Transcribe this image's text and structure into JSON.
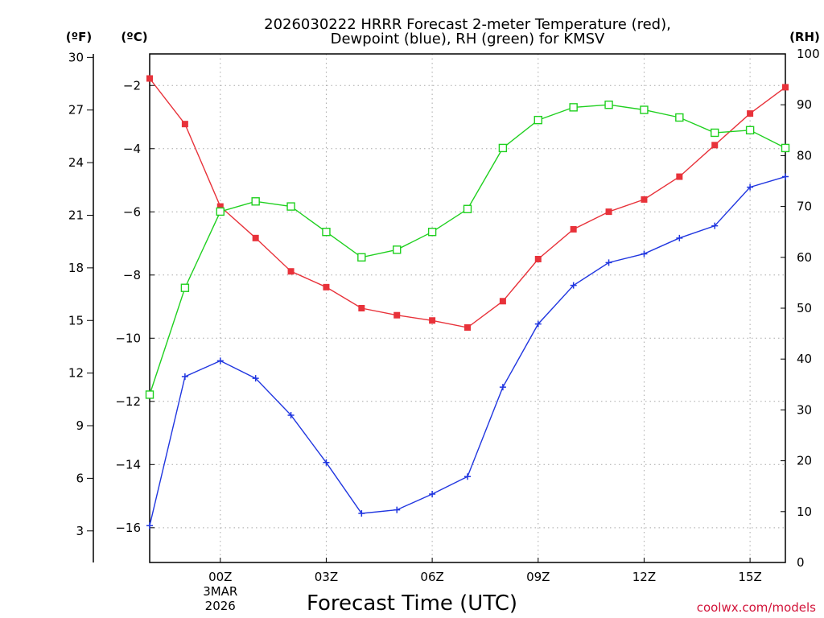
{
  "chart_data": {
    "type": "line",
    "title_line1": "2026030222 HRRR Forecast 2-meter Temperature (red),",
    "title_line2": "Dewpoint (blue), RH (green) for KMSV",
    "xlabel": "Forecast Time (UTC)",
    "units": {
      "f": "(ºF)",
      "c": "(ºC)",
      "rh": "(RH)"
    },
    "credit": "coolwx.com/models",
    "x_hours": [
      -2,
      -1,
      0,
      1,
      2,
      3,
      4,
      5,
      6,
      7,
      8,
      9,
      10,
      11,
      12,
      13,
      14,
      15,
      16
    ],
    "xlim": [
      -2,
      16
    ],
    "x_ticks": [
      {
        "hour": 0,
        "label": "00Z",
        "date1": "3MAR",
        "date2": "2026"
      },
      {
        "hour": 3,
        "label": "03Z"
      },
      {
        "hour": 6,
        "label": "06Z"
      },
      {
        "hour": 9,
        "label": "09Z"
      },
      {
        "hour": 12,
        "label": "12Z"
      },
      {
        "hour": 15,
        "label": "15Z"
      }
    ],
    "ylim_c": [
      -17.1,
      -1.0
    ],
    "ylim_f": [
      1.2,
      30.2
    ],
    "ylim_rh": [
      0,
      100
    ],
    "c_ticks": [
      -2,
      -4,
      -6,
      -8,
      -10,
      -12,
      -14,
      -16
    ],
    "f_ticks": [
      30,
      27,
      24,
      21,
      18,
      15,
      12,
      9,
      6,
      3
    ],
    "rh_ticks": [
      100,
      90,
      80,
      70,
      60,
      50,
      40,
      30,
      20,
      10,
      0
    ],
    "series": [
      {
        "name": "Temperature",
        "units": "F",
        "color": "#e8323a",
        "values": [
          28.8,
          26.2,
          21.5,
          19.7,
          17.8,
          16.9,
          15.7,
          15.3,
          15.0,
          14.6,
          16.1,
          18.5,
          20.2,
          21.2,
          21.9,
          23.2,
          25.0,
          26.8,
          28.3
        ]
      },
      {
        "name": "Dewpoint",
        "units": "F",
        "color": "#2036e0",
        "values": [
          3.3,
          11.8,
          12.7,
          11.7,
          9.6,
          6.9,
          4.0,
          4.2,
          5.1,
          6.1,
          11.2,
          14.8,
          17.0,
          18.3,
          18.8,
          19.7,
          20.4,
          22.6,
          23.2
        ]
      },
      {
        "name": "RH",
        "units": "percent",
        "color": "#1fd01f",
        "values": [
          33,
          54,
          69,
          71,
          70,
          65,
          60,
          61.5,
          65,
          69.5,
          81.5,
          87,
          89.5,
          90,
          89,
          87.5,
          84.5,
          85,
          81.5
        ]
      }
    ]
  }
}
